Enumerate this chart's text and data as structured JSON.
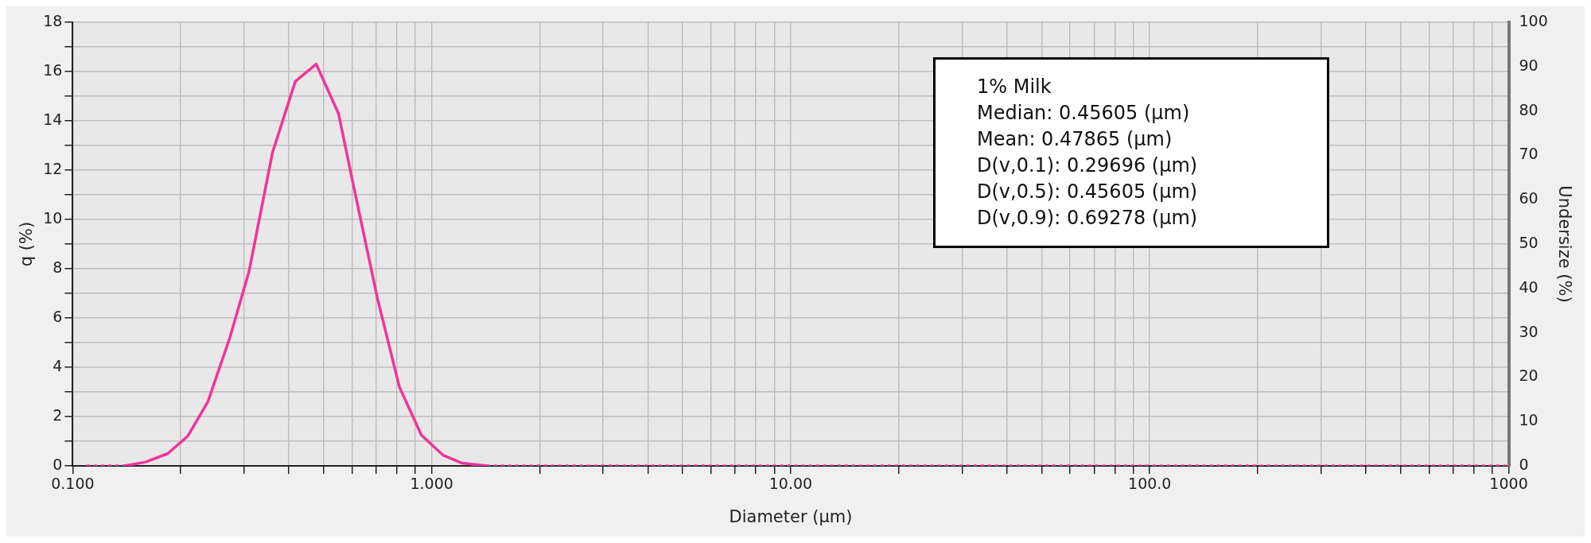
{
  "chart_data": {
    "type": "line",
    "xlabel": "Diameter (µm)",
    "ylabel": "q (%)",
    "y2label": "Undersize (%)",
    "annotations": [
      "1% Milk",
      "Median:  0.45605 (µm)",
      "Mean:  0.47865 (µm)",
      "D(v,0.1):  0.29696 (µm)",
      "D(v,0.5):  0.45605 (µm)",
      "D(v,0.9):  0.69278 (µm)"
    ],
    "log": "x",
    "grid": true,
    "legend": false,
    "xlim": [
      0.1,
      1000
    ],
    "xticks": [
      {
        "value": 0.1,
        "label": "0.100"
      },
      {
        "value": 0.2,
        "label": null
      },
      {
        "value": 0.3,
        "label": null
      },
      {
        "value": 0.4,
        "label": null
      },
      {
        "value": 0.5,
        "label": null
      },
      {
        "value": 0.6,
        "label": null
      },
      {
        "value": 0.7,
        "label": null
      },
      {
        "value": 0.8,
        "label": null
      },
      {
        "value": 0.9,
        "label": null
      },
      {
        "value": 1,
        "label": "1.000"
      },
      {
        "value": 2,
        "label": null
      },
      {
        "value": 3,
        "label": null
      },
      {
        "value": 4,
        "label": null
      },
      {
        "value": 5,
        "label": null
      },
      {
        "value": 6,
        "label": null
      },
      {
        "value": 7,
        "label": null
      },
      {
        "value": 8,
        "label": null
      },
      {
        "value": 9,
        "label": null
      },
      {
        "value": 10,
        "label": "10.00"
      },
      {
        "value": 20,
        "label": null
      },
      {
        "value": 30,
        "label": null
      },
      {
        "value": 40,
        "label": null
      },
      {
        "value": 50,
        "label": null
      },
      {
        "value": 60,
        "label": null
      },
      {
        "value": 70,
        "label": null
      },
      {
        "value": 80,
        "label": null
      },
      {
        "value": 90,
        "label": null
      },
      {
        "value": 100,
        "label": "100.0"
      },
      {
        "value": 200,
        "label": null
      },
      {
        "value": 300,
        "label": null
      },
      {
        "value": 400,
        "label": null
      },
      {
        "value": 500,
        "label": null
      },
      {
        "value": 600,
        "label": null
      },
      {
        "value": 700,
        "label": null
      },
      {
        "value": 800,
        "label": null
      },
      {
        "value": 900,
        "label": null
      },
      {
        "value": 1000,
        "label": "1000"
      }
    ],
    "ylim": [
      0,
      18
    ],
    "yticks": [
      0,
      {
        "value": 1,
        "label": null
      },
      2,
      {
        "value": 3,
        "label": null
      },
      4,
      {
        "value": 5,
        "label": null
      },
      6,
      {
        "value": 7,
        "label": null
      },
      8,
      {
        "value": 9,
        "label": null
      },
      10,
      {
        "value": 11,
        "label": null
      },
      12,
      {
        "value": 13,
        "label": null
      },
      14,
      {
        "value": 15,
        "label": null
      },
      16,
      {
        "value": 17,
        "label": null
      },
      18
    ],
    "y2lim": [
      0,
      100
    ],
    "y2ticks": [
      0,
      10,
      20,
      30,
      40,
      50,
      60,
      70,
      80,
      90,
      100
    ],
    "series": [
      {
        "color": "#f0359a",
        "line_style": "solid",
        "x": [
          0.139,
          0.159,
          0.184,
          0.209,
          0.238,
          0.274,
          0.31,
          0.36,
          0.417,
          0.477,
          0.55,
          0.607,
          0.706,
          0.813,
          0.936,
          1.077,
          1.216,
          1.43
        ],
        "values": [
          0,
          0.15,
          0.5,
          1.2,
          2.6,
          5.2,
          7.9,
          12.7,
          15.6,
          16.3,
          14.3,
          11.3,
          6.8,
          3.2,
          1.25,
          0.43,
          0.11,
          0
        ]
      },
      {
        "color": "#f0359a",
        "line_style": "dotted",
        "x": [
          0.11,
          0.139,
          0.5,
          1.43,
          1000
        ],
        "values": [
          0,
          0,
          null,
          0,
          0
        ]
      }
    ]
  }
}
